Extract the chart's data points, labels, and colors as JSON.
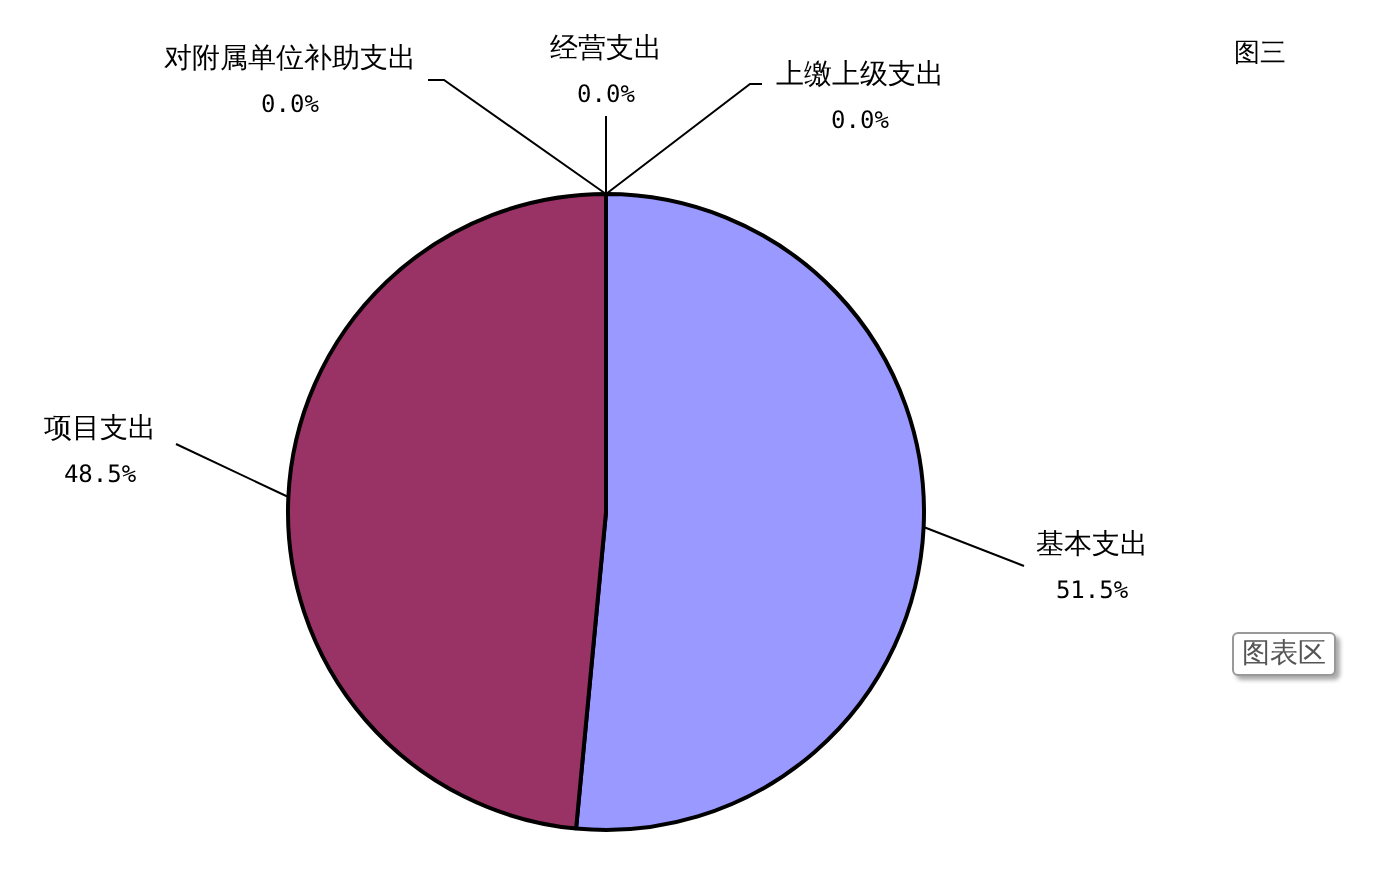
{
  "chart_data": {
    "type": "pie",
    "title": "图三",
    "categories": [
      "基本支出",
      "项目支出",
      "对附属单位补助支出",
      "经营支出",
      "上缴上级支出"
    ],
    "values": [
      51.5,
      48.5,
      0,
      0,
      0
    ],
    "value_labels": [
      "51.5%",
      "48.5%",
      "0.0%",
      "0.0%",
      "0.0%"
    ],
    "colors": [
      "#9999ff",
      "#993366",
      "#ffffcc",
      "#ccffff",
      "#660066"
    ],
    "legend": false,
    "annotations": [
      "图表区"
    ]
  }
}
